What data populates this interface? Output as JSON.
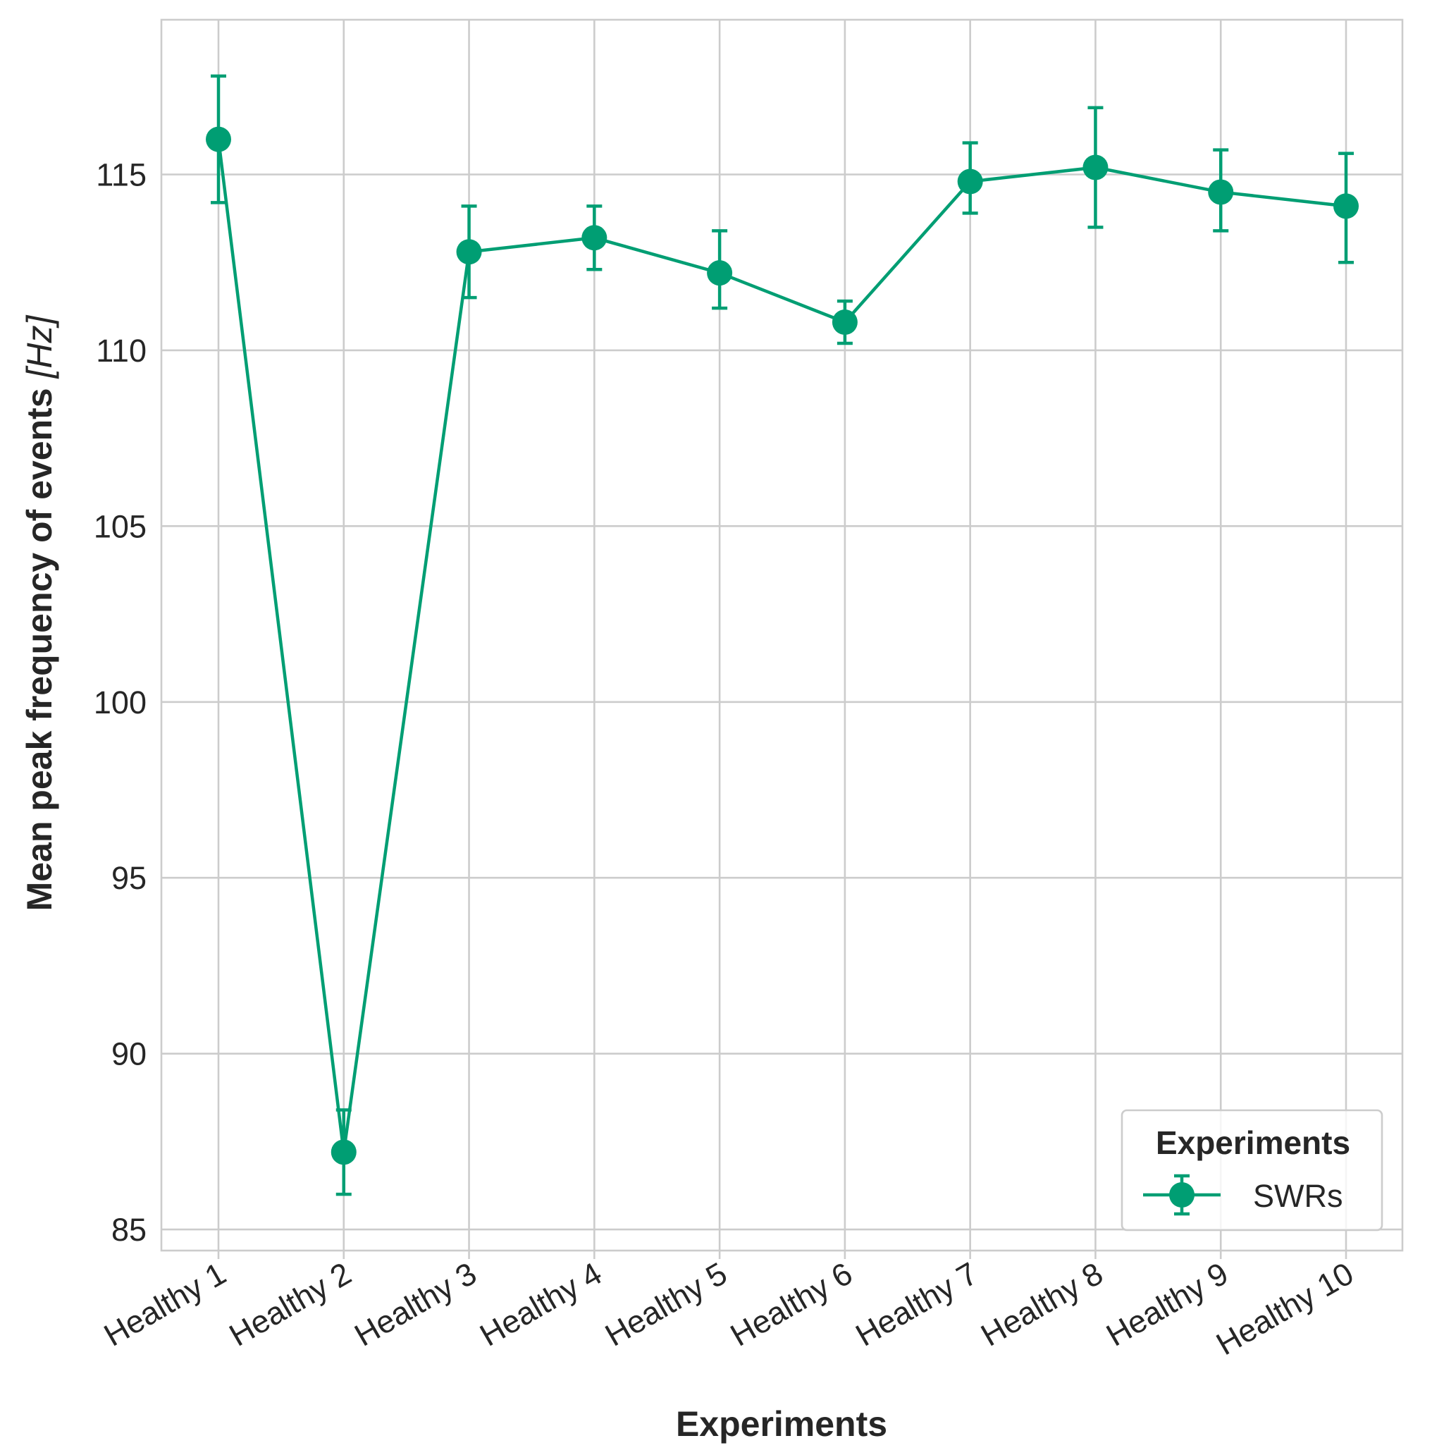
{
  "chart_data": {
    "type": "line",
    "categories": [
      "Healthy 1",
      "Healthy 2",
      "Healthy 3",
      "Healthy 4",
      "Healthy 5",
      "Healthy 6",
      "Healthy 7",
      "Healthy 8",
      "Healthy 9",
      "Healthy 10"
    ],
    "series": [
      {
        "name": "SWRs",
        "values": [
          116.0,
          87.2,
          112.8,
          113.2,
          112.2,
          110.8,
          114.8,
          115.2,
          114.5,
          114.1
        ],
        "error_low": [
          114.2,
          86.0,
          111.5,
          112.3,
          111.2,
          110.2,
          113.9,
          113.5,
          113.4,
          112.5
        ],
        "error_high": [
          117.8,
          88.4,
          114.1,
          114.1,
          113.4,
          111.4,
          115.9,
          116.9,
          115.7,
          115.6
        ],
        "color": "#009e73"
      }
    ],
    "xlabel": "Experiments",
    "ylabel": "Mean peak frequency of events",
    "ylabel_unit": "[Hz]",
    "ylim": [
      84.4,
      119.4
    ],
    "yticks": [
      85,
      90,
      95,
      100,
      105,
      110,
      115
    ],
    "grid": true,
    "legend": {
      "title": "Experiments",
      "placement": "lower-right"
    }
  }
}
